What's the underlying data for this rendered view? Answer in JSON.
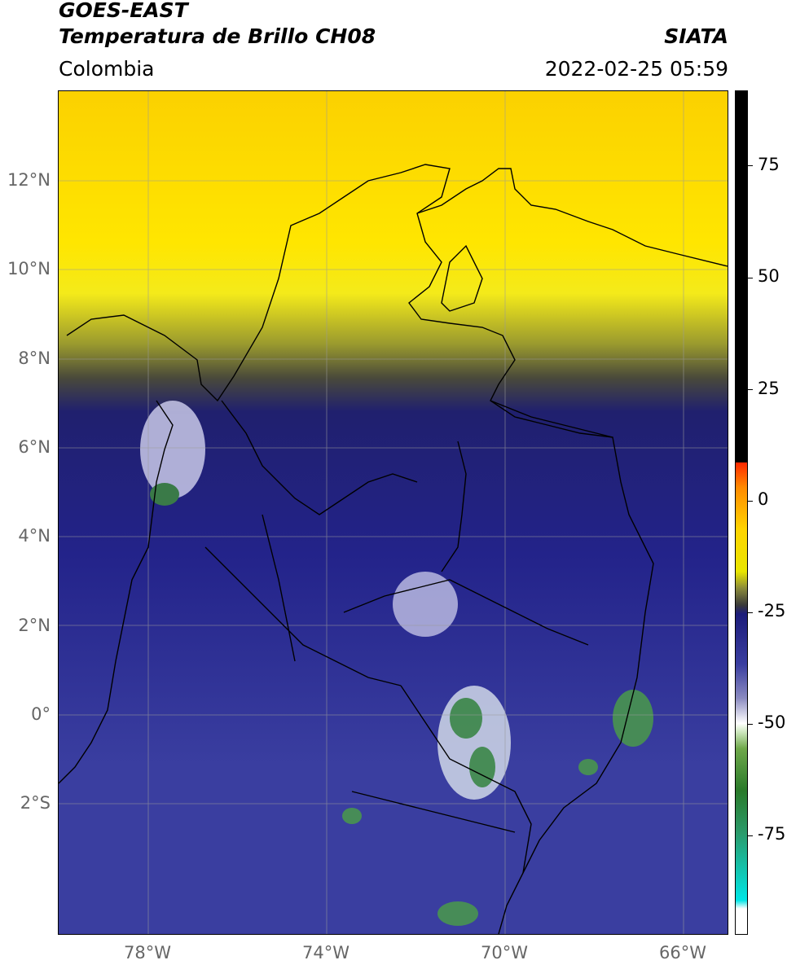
{
  "header": {
    "title_line1": "GOES-EAST",
    "title_line2": "Temperatura de Brillo CH08",
    "region": "Colombia",
    "organization": "SIATA",
    "datetime": "2022-02-25 05:59"
  },
  "axes": {
    "latitudes": [
      "12°N",
      "10°N",
      "8°N",
      "6°N",
      "4°N",
      "2°N",
      "0°",
      "2°S"
    ],
    "longitudes": [
      "78°W",
      "74°W",
      "70°W",
      "66°W"
    ]
  },
  "colorbar": {
    "ticks": [
      "75",
      "50",
      "25",
      "0",
      "-25",
      "-50",
      "-75"
    ]
  },
  "colors": {
    "warm": "#ffe600",
    "mid": "#23238a",
    "cold": "#2a7a2a"
  }
}
